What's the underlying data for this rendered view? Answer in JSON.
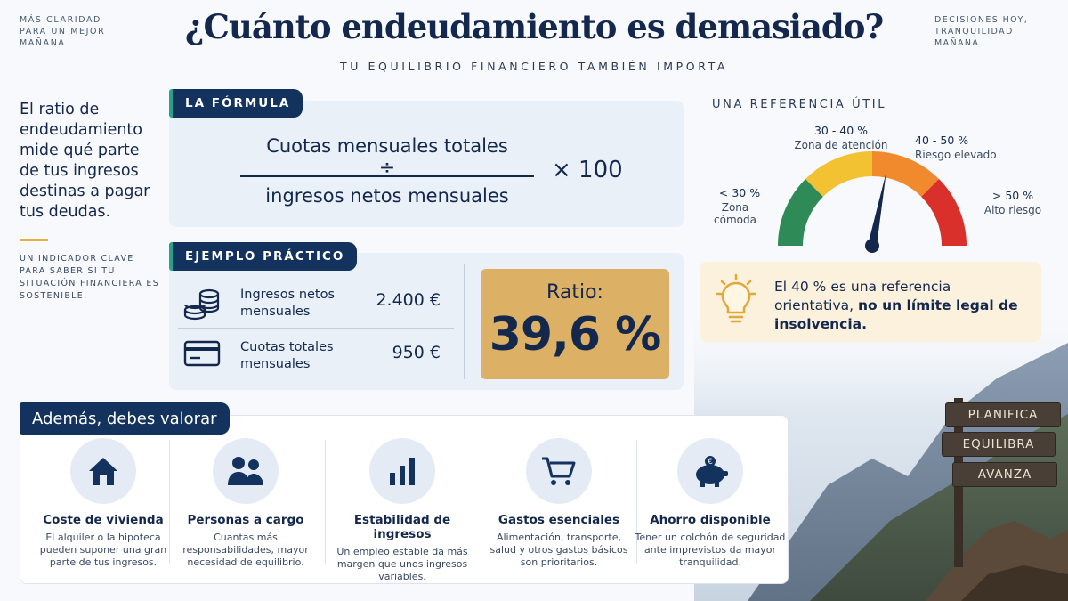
{
  "header": {
    "corner_left": "MÁS CLARIDAD PARA UN MEJOR MAÑANA",
    "title": "¿Cuánto endeudamiento es demasiado?",
    "subtitle": "TU EQUILIBRIO FINANCIERO TAMBIÉN IMPORTA",
    "corner_right": "DECISIONES HOY, TRANQUILIDAD MAÑANA"
  },
  "intro": {
    "text": "El ratio de endeudamiento mide qué parte de tus ingresos destinas a pagar tus deudas.",
    "note": "UN INDICADOR CLAVE PARA SABER SI TU SITUACIÓN FINANCIERA ES SOSTENIBLE."
  },
  "formula": {
    "tag": "LA FÓRMULA",
    "numerator": "Cuotas mensuales totales",
    "operator": "÷",
    "denominator": "ingresos netos mensuales",
    "multiplier": "× 100"
  },
  "example": {
    "tag": "EJEMPLO PRÁCTICO",
    "rows": [
      {
        "label": "Ingresos netos mensuales",
        "value": "2.400 €",
        "icon": "coins-icon"
      },
      {
        "label": "Cuotas totales mensuales",
        "value": "950 €",
        "icon": "credit-card-icon"
      }
    ],
    "ratio_label": "Ratio:",
    "ratio_value": "39,6 %"
  },
  "gauge": {
    "title": "UNA REFERENCIA ÚTIL",
    "zones": [
      {
        "range": "< 30 %",
        "desc": "Zona cómoda",
        "color": "#2e8b57"
      },
      {
        "range": "30 - 40 %",
        "desc": "Zona de atención",
        "color": "#f2c232"
      },
      {
        "range": "40 - 50 %",
        "desc": "Riesgo elevado",
        "color": "#f08a2c"
      },
      {
        "range": "> 50 %",
        "desc": "Alto riesgo",
        "color": "#d9302c"
      }
    ],
    "needle_value_percent": 39.6
  },
  "info": {
    "prefix": "El 40 % es una referencia orientativa, ",
    "bold": "no un límite legal de insolvencia.",
    "icon": "lightbulb-icon"
  },
  "ademas": {
    "tag": "Además, debes valorar",
    "factors": [
      {
        "title": "Coste de vivienda",
        "desc": "El alquiler o la hipoteca pueden suponer una gran parte de tus ingresos.",
        "icon": "house-icon"
      },
      {
        "title": "Personas a cargo",
        "desc": "Cuantas más responsabilidades, mayor necesidad de equilibrio.",
        "icon": "people-icon"
      },
      {
        "title": "Estabilidad de ingresos",
        "desc": "Un empleo estable da más margen que unos ingresos variables.",
        "icon": "bar-chart-icon"
      },
      {
        "title": "Gastos esenciales",
        "desc": "Alimentación, transporte, salud y otros gastos básicos son prioritarios.",
        "icon": "shopping-cart-icon"
      },
      {
        "title": "Ahorro disponible",
        "desc": "Tener un colchón de seguridad ante imprevistos da mayor tranquilidad.",
        "icon": "piggy-bank-icon"
      }
    ]
  },
  "signpost": [
    "PLANIFICA",
    "EQUILIBRA",
    "AVANZA"
  ],
  "colors": {
    "navy": "#14284e",
    "gold": "#dcb166",
    "teal": "#2aa08a"
  }
}
